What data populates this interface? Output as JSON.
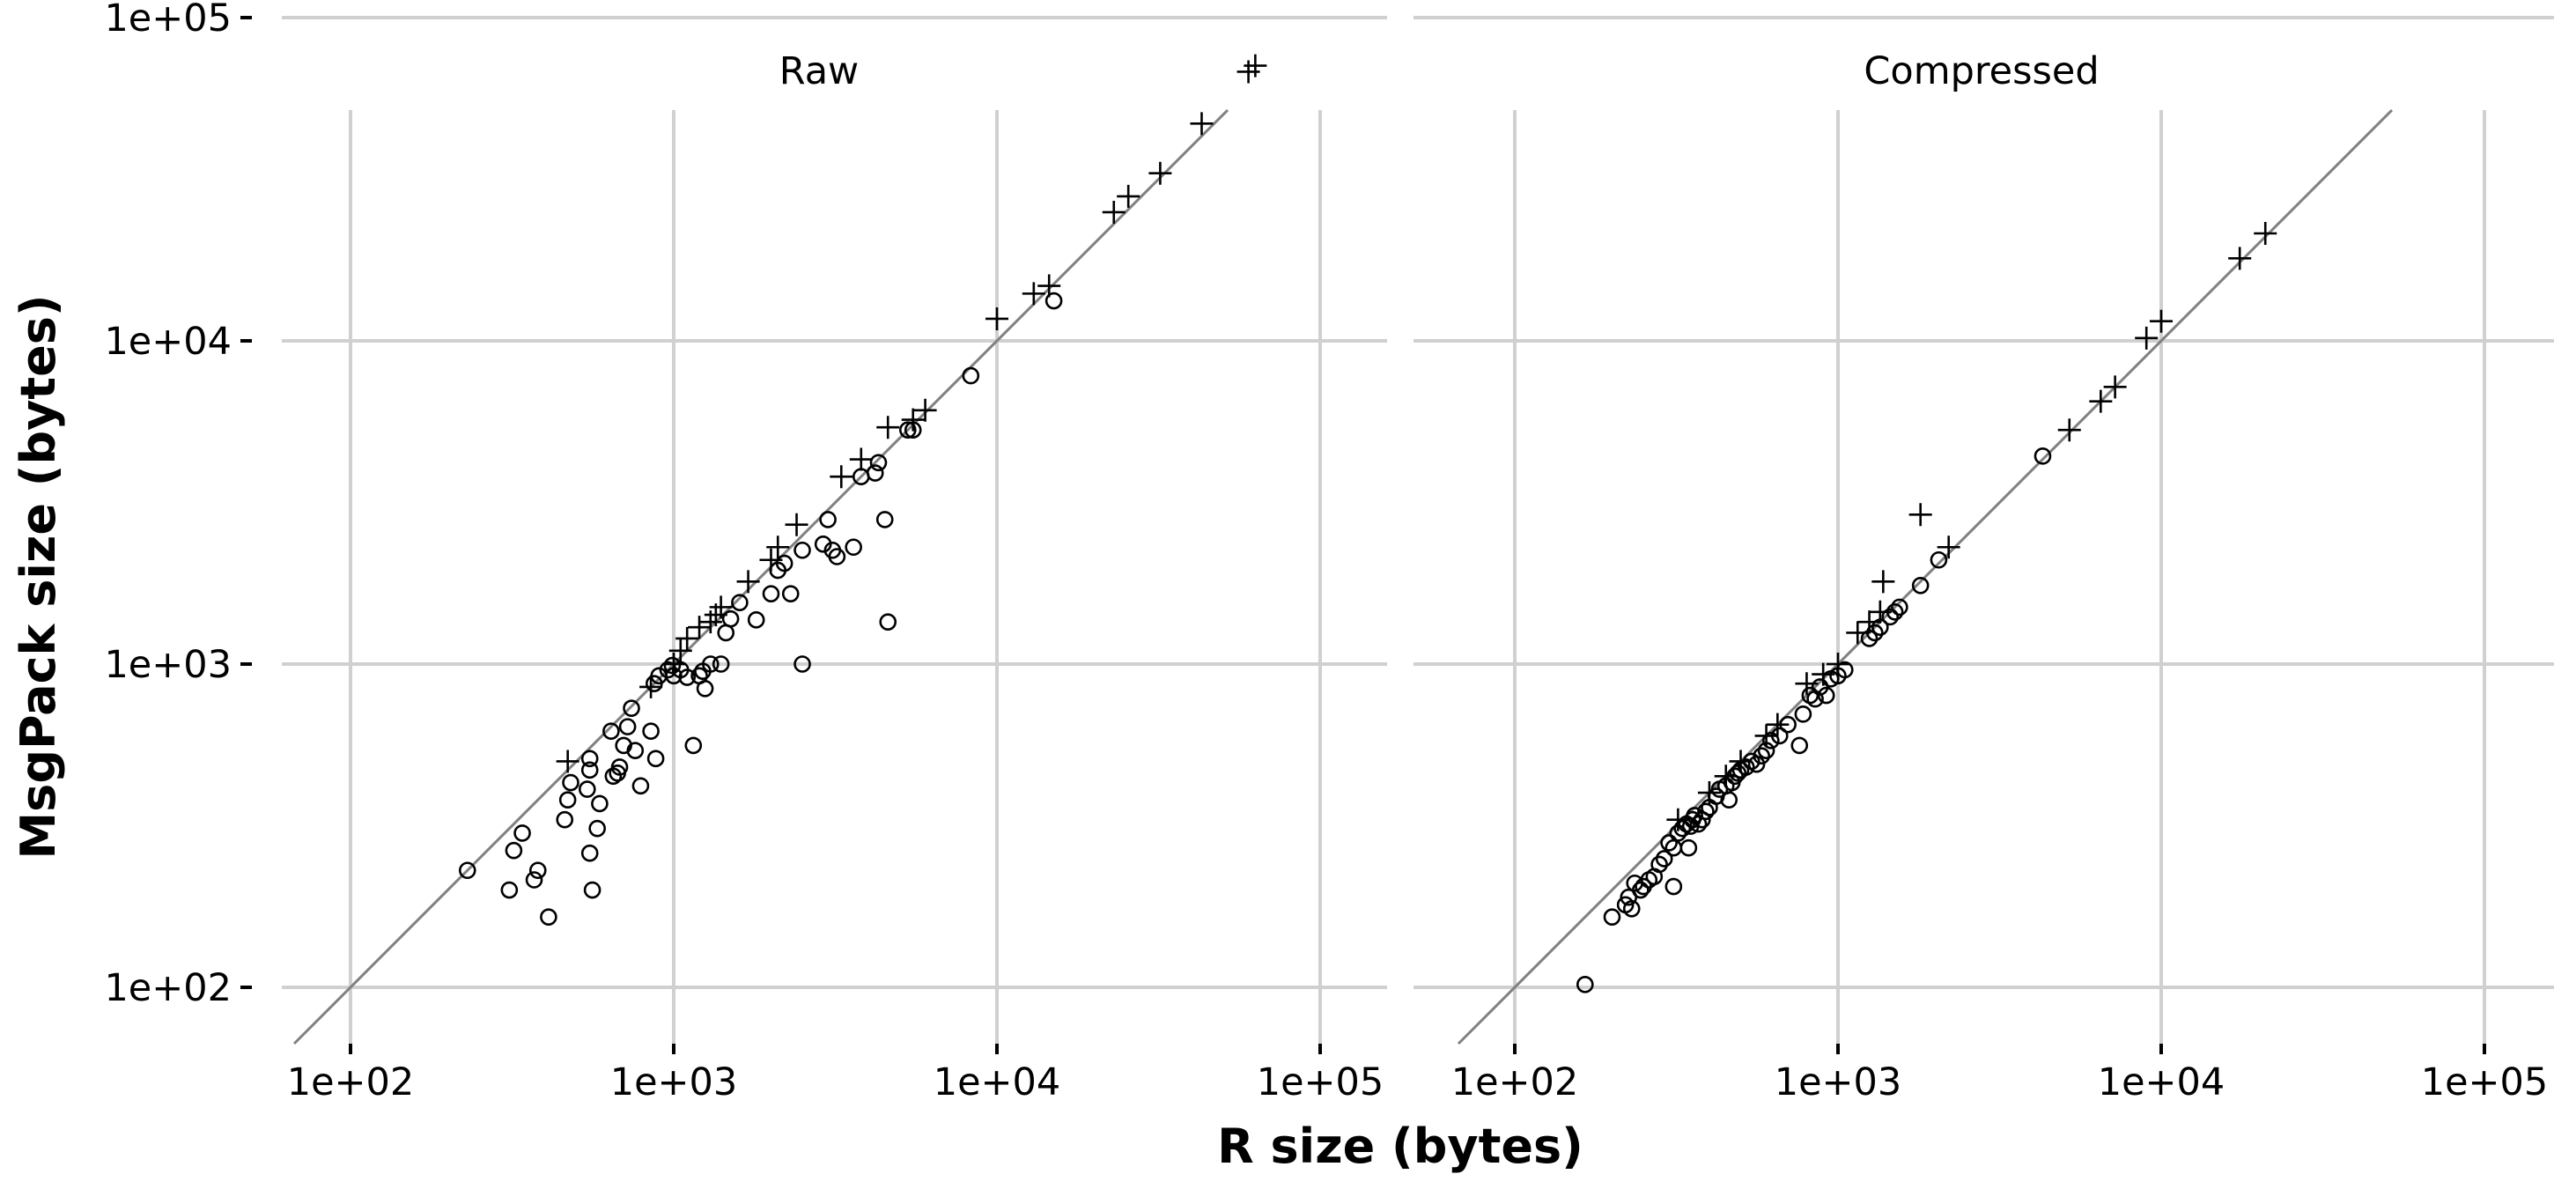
{
  "chart_data": {
    "type": "scatter",
    "xlabel": "R size (bytes)",
    "ylabel": "MsgPack size (bytes)",
    "scale": "log10",
    "grid": true,
    "xlim": [
      60,
      150000
    ],
    "ylim": [
      60,
      150000
    ],
    "ticks": [
      100,
      1000,
      10000,
      100000
    ],
    "tick_labels": [
      "1e+02",
      "1e+03",
      "1e+04",
      "1e+05"
    ],
    "reference_line": "y = x",
    "panels": [
      {
        "title": "Raw",
        "circles": [
          [
            230,
            230
          ],
          [
            310,
            200
          ],
          [
            320,
            265
          ],
          [
            340,
            300
          ],
          [
            370,
            215
          ],
          [
            380,
            230
          ],
          [
            410,
            165
          ],
          [
            460,
            330
          ],
          [
            470,
            380
          ],
          [
            480,
            430
          ],
          [
            540,
            410
          ],
          [
            550,
            260
          ],
          [
            550,
            470
          ],
          [
            550,
            510
          ],
          [
            560,
            200
          ],
          [
            580,
            310
          ],
          [
            590,
            370
          ],
          [
            640,
            620
          ],
          [
            650,
            450
          ],
          [
            670,
            460
          ],
          [
            680,
            480
          ],
          [
            700,
            560
          ],
          [
            720,
            640
          ],
          [
            740,
            730
          ],
          [
            760,
            540
          ],
          [
            790,
            420
          ],
          [
            850,
            620
          ],
          [
            870,
            870
          ],
          [
            880,
            510
          ],
          [
            900,
            920
          ],
          [
            960,
            960
          ],
          [
            990,
            990
          ],
          [
            1000,
            920
          ],
          [
            1050,
            960
          ],
          [
            1100,
            910
          ],
          [
            1150,
            560
          ],
          [
            1200,
            920
          ],
          [
            1230,
            950
          ],
          [
            1250,
            840
          ],
          [
            1300,
            1000
          ],
          [
            1400,
            1000
          ],
          [
            1450,
            1250
          ],
          [
            1500,
            1380
          ],
          [
            1600,
            1550
          ],
          [
            1800,
            1370
          ],
          [
            2000,
            1650
          ],
          [
            2100,
            1950
          ],
          [
            2200,
            2050
          ],
          [
            2300,
            1650
          ],
          [
            2500,
            1000
          ],
          [
            2500,
            2250
          ],
          [
            2900,
            2350
          ],
          [
            3000,
            2800
          ],
          [
            3100,
            2250
          ],
          [
            3200,
            2150
          ],
          [
            3600,
            2300
          ],
          [
            3800,
            3800
          ],
          [
            4200,
            3900
          ],
          [
            4300,
            4200
          ],
          [
            4500,
            2800
          ],
          [
            4600,
            1350
          ],
          [
            5300,
            5300
          ],
          [
            5500,
            5300
          ],
          [
            8300,
            7800
          ],
          [
            15000,
            13300
          ]
        ],
        "pluses": [
          [
            470,
            500
          ],
          [
            850,
            850
          ],
          [
            1000,
            1000
          ],
          [
            1050,
            1100
          ],
          [
            1100,
            1200
          ],
          [
            1200,
            1300
          ],
          [
            1300,
            1350
          ],
          [
            1350,
            1420
          ],
          [
            1400,
            1500
          ],
          [
            1700,
            1800
          ],
          [
            2000,
            2100
          ],
          [
            2100,
            2300
          ],
          [
            2400,
            2700
          ],
          [
            3300,
            3800
          ],
          [
            3800,
            4300
          ],
          [
            4600,
            5400
          ],
          [
            5500,
            5700
          ],
          [
            6000,
            6100
          ],
          [
            10000,
            11700
          ],
          [
            13000,
            14000
          ],
          [
            14500,
            14800
          ],
          [
            23000,
            25000
          ],
          [
            25500,
            28000
          ],
          [
            32000,
            33000
          ],
          [
            43000,
            47000
          ],
          [
            60000,
            68000
          ],
          [
            63000,
            71000
          ]
        ]
      },
      {
        "title": "Compressed",
        "circles": [
          [
            165,
            102
          ],
          [
            200,
            165
          ],
          [
            220,
            180
          ],
          [
            225,
            190
          ],
          [
            230,
            175
          ],
          [
            235,
            210
          ],
          [
            245,
            200
          ],
          [
            250,
            205
          ],
          [
            260,
            215
          ],
          [
            270,
            220
          ],
          [
            280,
            240
          ],
          [
            290,
            250
          ],
          [
            300,
            280
          ],
          [
            310,
            270
          ],
          [
            310,
            205
          ],
          [
            320,
            300
          ],
          [
            330,
            310
          ],
          [
            340,
            320
          ],
          [
            345,
            270
          ],
          [
            350,
            315
          ],
          [
            355,
            330
          ],
          [
            360,
            340
          ],
          [
            370,
            320
          ],
          [
            380,
            330
          ],
          [
            390,
            350
          ],
          [
            400,
            360
          ],
          [
            420,
            390
          ],
          [
            430,
            410
          ],
          [
            450,
            420
          ],
          [
            460,
            380
          ],
          [
            470,
            430
          ],
          [
            480,
            450
          ],
          [
            490,
            460
          ],
          [
            500,
            470
          ],
          [
            520,
            480
          ],
          [
            540,
            500
          ],
          [
            560,
            490
          ],
          [
            580,
            520
          ],
          [
            600,
            540
          ],
          [
            620,
            580
          ],
          [
            660,
            600
          ],
          [
            700,
            650
          ],
          [
            760,
            560
          ],
          [
            780,
            700
          ],
          [
            820,
            800
          ],
          [
            850,
            780
          ],
          [
            880,
            850
          ],
          [
            920,
            800
          ],
          [
            950,
            900
          ],
          [
            1000,
            920
          ],
          [
            1050,
            960
          ],
          [
            1250,
            1200
          ],
          [
            1300,
            1250
          ],
          [
            1350,
            1300
          ],
          [
            1450,
            1400
          ],
          [
            1500,
            1450
          ],
          [
            1550,
            1500
          ],
          [
            1800,
            1750
          ],
          [
            2050,
            2100
          ],
          [
            4300,
            4400
          ]
        ],
        "pluses": [
          [
            320,
            330
          ],
          [
            400,
            400
          ],
          [
            450,
            450
          ],
          [
            500,
            500
          ],
          [
            600,
            600
          ],
          [
            650,
            650
          ],
          [
            800,
            870
          ],
          [
            900,
            930
          ],
          [
            1000,
            1000
          ],
          [
            1150,
            1250
          ],
          [
            1250,
            1350
          ],
          [
            1350,
            1450
          ],
          [
            1380,
            1800
          ],
          [
            1800,
            2900
          ],
          [
            2200,
            2300
          ],
          [
            5200,
            5300
          ],
          [
            6500,
            6500
          ],
          [
            7200,
            7200
          ],
          [
            9000,
            10200
          ],
          [
            10000,
            11500
          ],
          [
            17500,
            18000
          ],
          [
            21000,
            21500
          ]
        ]
      }
    ]
  }
}
